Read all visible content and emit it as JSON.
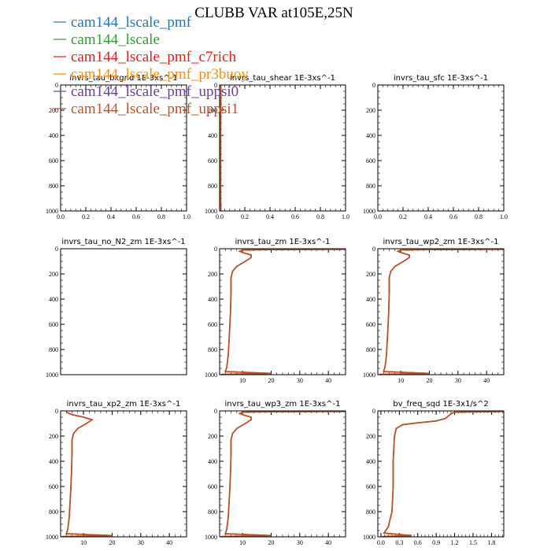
{
  "title": "CLUBB VAR at105E,25N",
  "legend": [
    {
      "label": "cam144_lscale_pmf",
      "color": "#1f77b4"
    },
    {
      "label": "cam144_lscale",
      "color": "#2ca02c"
    },
    {
      "label": "cam144_lscale_pmf_c7rich",
      "color": "#e41a1c"
    },
    {
      "label": "cam144_lscale_pmf_pr3buoy",
      "color": "#ff8c00"
    },
    {
      "label": "cam144_lscale_pmf_uppsi0",
      "color": "#6a3d9a"
    },
    {
      "label": "cam144_lscale_pmf_uppsi1",
      "color": "#b5532b"
    }
  ],
  "chart_data": [
    {
      "type": "line",
      "title": "invrs_tau_bkgnd   1E-3xs^-1",
      "xlim": [
        0,
        1
      ],
      "ylim": [
        1000,
        0
      ],
      "xticks": [
        "0.0",
        "0.2",
        "0.4",
        "0.6",
        "0.8",
        "1.0"
      ],
      "yticks": [
        "0",
        "200",
        "400",
        "600",
        "800",
        "1000"
      ],
      "series": []
    },
    {
      "type": "line",
      "title": "invrs_tau_shear   1E-3xs^-1",
      "xlim": [
        0,
        1
      ],
      "ylim": [
        1000,
        0
      ],
      "xticks": [
        "0.0",
        "0.2",
        "0.4",
        "0.6",
        "0.8",
        "1.0"
      ],
      "yticks": [
        "0",
        "200",
        "400",
        "600",
        "800",
        "1000"
      ],
      "series": [
        {
          "points": [
            [
              0.01,
              0
            ],
            [
              0.01,
              100
            ],
            [
              0.008,
              300
            ],
            [
              0.008,
              600
            ],
            [
              0.008,
              900
            ],
            [
              0.01,
              1000
            ]
          ]
        }
      ]
    },
    {
      "type": "line",
      "title": "invrs_tau_sfc   1E-3xs^-1",
      "xlim": [
        0,
        1
      ],
      "ylim": [
        1000,
        0
      ],
      "xticks": [
        "0.0",
        "0.2",
        "0.4",
        "0.6",
        "0.8",
        "1.0"
      ],
      "yticks": [
        "0",
        "200",
        "400",
        "600",
        "800",
        "1000"
      ],
      "series": []
    },
    {
      "type": "line",
      "title": "invrs_tau_no_N2_zm   1E-3xs^-1",
      "xlim": [
        0,
        1
      ],
      "ylim": [
        1000,
        0
      ],
      "xticks": [],
      "yticks": [
        "0",
        "200",
        "400",
        "600",
        "800",
        "1000"
      ],
      "series": []
    },
    {
      "type": "line",
      "title": "invrs_tau_zm   1E-3xs^-1",
      "xlim": [
        2,
        46
      ],
      "ylim": [
        1000,
        0
      ],
      "xticks": [
        "10",
        "20",
        "30",
        "40"
      ],
      "xtickvals": [
        10,
        20,
        30,
        40
      ],
      "yticks": [
        "0",
        "200",
        "400",
        "600",
        "800",
        "1000"
      ],
      "series": [
        {
          "points": [
            [
              46,
              5
            ],
            [
              20,
              7
            ],
            [
              10,
              10
            ],
            [
              9,
              20
            ],
            [
              10,
              30
            ],
            [
              13,
              50
            ],
            [
              13,
              70
            ],
            [
              11,
              100
            ],
            [
              8,
              140
            ],
            [
              6.5,
              180
            ],
            [
              6,
              230
            ],
            [
              6,
              350
            ],
            [
              5.8,
              500
            ],
            [
              5.5,
              650
            ],
            [
              5,
              850
            ],
            [
              4.5,
              940
            ],
            [
              4,
              975
            ],
            [
              20,
              990
            ],
            [
              2.5,
              998
            ]
          ]
        }
      ]
    },
    {
      "type": "line",
      "title": "invrs_tau_wp2_zm   1E-3xs^-1",
      "xlim": [
        2,
        46
      ],
      "ylim": [
        1000,
        0
      ],
      "xticks": [
        "10",
        "20",
        "30",
        "40"
      ],
      "xtickvals": [
        10,
        20,
        30,
        40
      ],
      "yticks": [
        "0",
        "200",
        "400",
        "600",
        "800",
        "1000"
      ],
      "series": [
        {
          "points": [
            [
              46,
              5
            ],
            [
              20,
              7
            ],
            [
              10,
              10
            ],
            [
              9,
              20
            ],
            [
              10,
              30
            ],
            [
              13,
              50
            ],
            [
              13,
              70
            ],
            [
              11,
              100
            ],
            [
              8,
              140
            ],
            [
              6.5,
              180
            ],
            [
              6,
              230
            ],
            [
              6,
              350
            ],
            [
              5.8,
              500
            ],
            [
              5.5,
              650
            ],
            [
              5,
              850
            ],
            [
              4.5,
              940
            ],
            [
              4,
              975
            ],
            [
              20,
              990
            ],
            [
              2.5,
              998
            ]
          ]
        }
      ]
    },
    {
      "type": "line",
      "title": "invrs_tau_xp2_zm   1E-3xs^-1",
      "xlim": [
        2,
        46
      ],
      "ylim": [
        1000,
        0
      ],
      "xticks": [
        "10",
        "20",
        "30",
        "40"
      ],
      "xtickvals": [
        10,
        20,
        30,
        40
      ],
      "yticks": [
        "0",
        "200",
        "400",
        "600",
        "800",
        "1000"
      ],
      "series": [
        {
          "points": [
            [
              4,
              10
            ],
            [
              6,
              30
            ],
            [
              10,
              50
            ],
            [
              13,
              70
            ],
            [
              11,
              100
            ],
            [
              8,
              140
            ],
            [
              6.5,
              180
            ],
            [
              6,
              230
            ],
            [
              6,
              350
            ],
            [
              5.8,
              500
            ],
            [
              5.5,
              650
            ],
            [
              5,
              850
            ],
            [
              4.5,
              940
            ],
            [
              4,
              975
            ],
            [
              20,
              990
            ],
            [
              2.5,
              998
            ]
          ]
        }
      ]
    },
    {
      "type": "line",
      "title": "invrs_tau_wp3_zm   1E-3xs^-1",
      "xlim": [
        2,
        46
      ],
      "ylim": [
        1000,
        0
      ],
      "xticks": [
        "10",
        "20",
        "30",
        "40"
      ],
      "xtickvals": [
        10,
        20,
        30,
        40
      ],
      "yticks": [
        "0",
        "200",
        "400",
        "600",
        "800",
        "1000"
      ],
      "series": [
        {
          "points": [
            [
              46,
              5
            ],
            [
              20,
              7
            ],
            [
              10,
              10
            ],
            [
              9,
              20
            ],
            [
              10,
              30
            ],
            [
              13,
              50
            ],
            [
              13,
              70
            ],
            [
              11,
              100
            ],
            [
              8,
              140
            ],
            [
              6.5,
              180
            ],
            [
              6,
              230
            ],
            [
              6,
              350
            ],
            [
              5.8,
              500
            ],
            [
              5.5,
              650
            ],
            [
              5,
              850
            ],
            [
              4.5,
              940
            ],
            [
              4,
              975
            ],
            [
              20,
              990
            ],
            [
              2.5,
              998
            ]
          ]
        }
      ]
    },
    {
      "type": "line",
      "title": "bv_freq_sqd   1E-3x1/s^2",
      "xlim": [
        -0.05,
        2.0
      ],
      "ylim": [
        1000,
        0
      ],
      "xticks": [
        "0.0",
        "0.3",
        "0.6",
        "0.9",
        "1.2",
        "1.5",
        "1.8"
      ],
      "xtickvals": [
        0,
        0.3,
        0.6,
        0.9,
        1.2,
        1.5,
        1.8
      ],
      "yticks": [
        "0",
        "200",
        "400",
        "600",
        "800",
        "1000"
      ],
      "series": [
        {
          "points": [
            [
              2.0,
              5
            ],
            [
              1.2,
              10
            ],
            [
              1.15,
              20
            ],
            [
              1.05,
              60
            ],
            [
              0.9,
              80
            ],
            [
              0.6,
              95
            ],
            [
              0.35,
              110
            ],
            [
              0.25,
              140
            ],
            [
              0.22,
              200
            ],
            [
              0.2,
              400
            ],
            [
              0.2,
              600
            ],
            [
              0.18,
              800
            ],
            [
              0.12,
              920
            ],
            [
              0.05,
              970
            ],
            [
              0.5,
              990
            ],
            [
              0.02,
              998
            ]
          ]
        }
      ]
    }
  ]
}
